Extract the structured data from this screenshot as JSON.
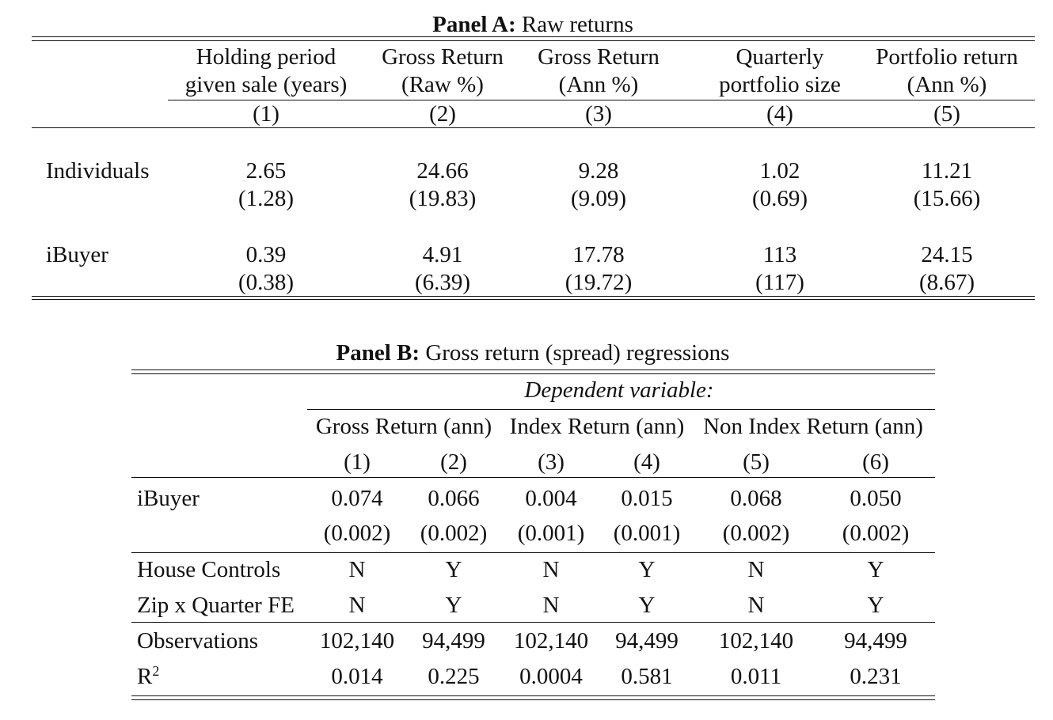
{
  "panel_a": {
    "title_bold": "Panel A:",
    "title_rest": " Raw returns",
    "headers": [
      {
        "line1": "Holding period",
        "line2": "given sale (years)",
        "num": "(1)"
      },
      {
        "line1": "Gross Return",
        "line2": "(Raw %)",
        "num": "(2)"
      },
      {
        "line1": "Gross Return",
        "line2": "(Ann %)",
        "num": "(3)"
      },
      {
        "line1": "Quarterly",
        "line2": "portfolio size",
        "num": "(4)"
      },
      {
        "line1": "Portfolio return",
        "line2": "(Ann %)",
        "num": "(5)"
      }
    ],
    "rows": [
      {
        "label": "Individuals",
        "values": [
          "2.65",
          "24.66",
          "9.28",
          "1.02",
          "11.21"
        ],
        "se": [
          "(1.28)",
          "(19.83)",
          "(9.09)",
          "(0.69)",
          "(15.66)"
        ]
      },
      {
        "label": "iBuyer",
        "values": [
          "0.39",
          "4.91",
          "17.78",
          "113",
          "24.15"
        ],
        "se": [
          "(0.38)",
          "(6.39)",
          "(19.72)",
          "(117)",
          "(8.67)"
        ]
      }
    ]
  },
  "panel_b": {
    "title_bold": "Panel B:",
    "title_rest": " Gross return (spread) regressions",
    "dependent_label": "Dependent variable:",
    "groups": [
      "Gross Return (ann)",
      "Index Return (ann)",
      "Non Index Return (ann)"
    ],
    "col_nums": [
      "(1)",
      "(2)",
      "(3)",
      "(4)",
      "(5)",
      "(6)"
    ],
    "ibuyer": {
      "label": "iBuyer",
      "coef": [
        "0.074",
        "0.066",
        "0.004",
        "0.015",
        "0.068",
        "0.050"
      ],
      "se": [
        "(0.002)",
        "(0.002)",
        "(0.001)",
        "(0.001)",
        "(0.002)",
        "(0.002)"
      ]
    },
    "controls": [
      {
        "label": "House Controls",
        "values": [
          "N",
          "Y",
          "N",
          "Y",
          "N",
          "Y"
        ]
      },
      {
        "label": "Zip x Quarter FE",
        "values": [
          "N",
          "Y",
          "N",
          "Y",
          "N",
          "Y"
        ]
      }
    ],
    "observations": {
      "label": "Observations",
      "values": [
        "102,140",
        "94,499",
        "102,140",
        "94,499",
        "102,140",
        "94,499"
      ]
    },
    "r2": {
      "label": "R",
      "label_sup": "2",
      "values": [
        "0.014",
        "0.225",
        "0.0004",
        "0.581",
        "0.011",
        "0.231"
      ]
    }
  }
}
